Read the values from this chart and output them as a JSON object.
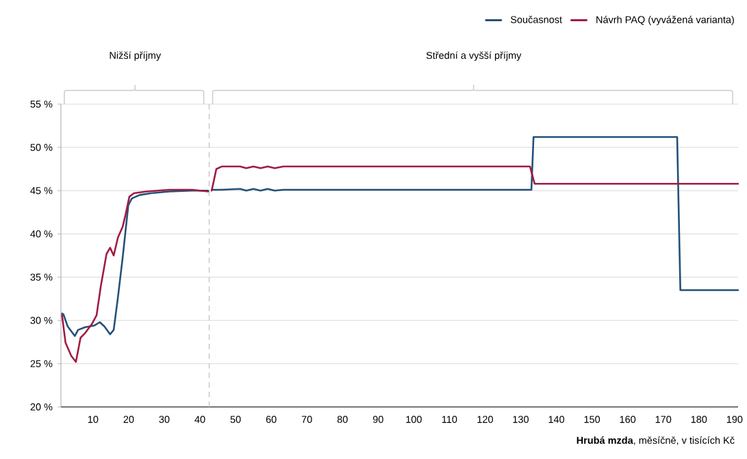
{
  "chart_data": {
    "type": "line",
    "xlabel": "**Hrubá mzda**, měsíčně, v tisících Kč",
    "annotations": [
      "Nižší příjmy",
      "Střední a vyšší příjmy"
    ],
    "series": [
      {
        "name": "Současnost",
        "color": "#24507a",
        "x": [
          1.3,
          1.7,
          2.9,
          4.9,
          5.8,
          7.7,
          10.3,
          11.9,
          13.2,
          14.8,
          15.8,
          17.0,
          18.3,
          19.9,
          20.9,
          23.1,
          26.3,
          31.5,
          37.8,
          42.3,
          42.6,
          43.3,
          46.0,
          51.3,
          53.0,
          55.0,
          57.0,
          59.0,
          61.0,
          63.4,
          80.0,
          100.0,
          120.0,
          133.0,
          133.6,
          150.0,
          173.9,
          174.8,
          191.0
        ],
        "values": [
          30.8,
          30.7,
          29.3,
          28.2,
          28.9,
          29.2,
          29.4,
          29.8,
          29.3,
          28.4,
          28.9,
          32.7,
          37.2,
          43.3,
          44.1,
          44.5,
          44.7,
          44.9,
          45.0,
          45.0,
          null,
          45.1,
          45.1,
          45.2,
          45.0,
          45.2,
          45.0,
          45.2,
          45.0,
          45.1,
          45.1,
          45.1,
          45.1,
          45.1,
          51.2,
          51.2,
          51.2,
          33.5,
          33.5
        ]
      },
      {
        "name": "Návrh PAQ (vyvážená varianta)",
        "color": "#a01c41",
        "x": [
          1.3,
          2.3,
          3.9,
          5.2,
          6.5,
          7.7,
          9.7,
          11.0,
          12.2,
          13.8,
          14.8,
          15.8,
          17.0,
          18.3,
          19.0,
          20.2,
          21.5,
          25.0,
          28.2,
          31.5,
          37.8,
          42.3,
          42.6,
          43.3,
          44.6,
          46.2,
          51.3,
          53.0,
          55.0,
          57.0,
          59.0,
          61.0,
          63.4,
          80.0,
          100.0,
          120.0,
          132.6,
          133.9,
          150.0,
          191.0
        ],
        "values": [
          30.6,
          27.4,
          25.9,
          25.2,
          28.0,
          28.5,
          29.6,
          30.6,
          34.0,
          37.7,
          38.4,
          37.5,
          39.6,
          40.8,
          42.0,
          44.3,
          44.7,
          44.9,
          45.0,
          45.1,
          45.1,
          44.9,
          null,
          45.0,
          47.5,
          47.8,
          47.8,
          47.6,
          47.8,
          47.6,
          47.8,
          47.6,
          47.8,
          47.8,
          47.8,
          47.8,
          47.8,
          45.8,
          45.8,
          45.8
        ]
      }
    ],
    "xlim": [
      1,
      191
    ],
    "ylim": [
      20,
      55
    ],
    "xticks": [
      10,
      20,
      30,
      40,
      50,
      60,
      70,
      80,
      90,
      100,
      110,
      120,
      130,
      140,
      150,
      160,
      170,
      180,
      190
    ],
    "yticks": [
      {
        "value": 20,
        "label": "20 %"
      },
      {
        "value": 25,
        "label": "25 %"
      },
      {
        "value": 30,
        "label": "30 %"
      },
      {
        "value": 35,
        "label": "35 %"
      },
      {
        "value": 40,
        "label": "40 %"
      },
      {
        "value": 45,
        "label": "45 %"
      },
      {
        "value": 50,
        "label": "50 %"
      },
      {
        "value": 55,
        "label": "55 %"
      }
    ],
    "ref_lines": [
      {
        "axis": "x",
        "value": 42.6,
        "color": "#c8c8c8",
        "line_style": "dashed"
      }
    ],
    "grid": "y",
    "legend": "top right",
    "marker": "none",
    "line_style": "solid"
  }
}
